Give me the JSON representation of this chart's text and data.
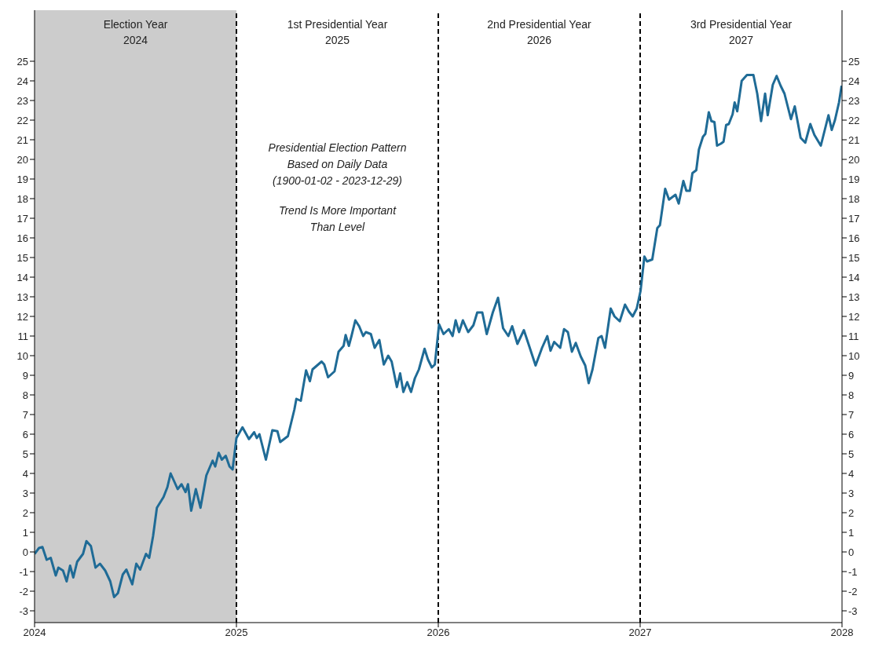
{
  "chart_data": {
    "type": "line",
    "x": [
      2024,
      2024.022,
      2024.039,
      2024.06,
      2024.08,
      2024.105,
      2024.118,
      2024.141,
      2024.159,
      2024.176,
      2024.192,
      2024.211,
      2024.24,
      2024.257,
      2024.279,
      2024.302,
      2024.324,
      2024.35,
      2024.375,
      2024.394,
      2024.413,
      2024.437,
      2024.455,
      2024.484,
      2024.504,
      2024.523,
      2024.552,
      2024.568,
      2024.587,
      2024.606,
      2024.639,
      2024.658,
      2024.674,
      2024.709,
      2024.728,
      2024.748,
      2024.76,
      2024.776,
      2024.799,
      2024.822,
      2024.851,
      2024.882,
      2024.895,
      2024.912,
      2024.928,
      2024.947,
      2024.966,
      2024.981,
      2025,
      2025.03,
      2025.062,
      2025.088,
      2025.101,
      2025.114,
      2025.146,
      2025.178,
      2025.203,
      2025.217,
      2025.255,
      2025.287,
      2025.297,
      2025.319,
      2025.345,
      2025.364,
      2025.377,
      2025.422,
      2025.435,
      2025.454,
      2025.486,
      2025.506,
      2025.531,
      2025.541,
      2025.557,
      2025.57,
      2025.589,
      2025.608,
      2025.628,
      2025.641,
      2025.666,
      2025.685,
      2025.708,
      2025.73,
      2025.752,
      2025.769,
      2025.795,
      2025.811,
      2025.827,
      2025.846,
      2025.865,
      2025.884,
      2025.904,
      2025.932,
      2025.949,
      2025.968,
      2025.983,
      2026.004,
      2026.026,
      2026.052,
      2026.071,
      2026.086,
      2026.103,
      2026.122,
      2026.148,
      2026.174,
      2026.193,
      2026.218,
      2026.24,
      2026.27,
      2026.296,
      2026.321,
      2026.347,
      2026.366,
      2026.392,
      2026.424,
      2026.45,
      2026.482,
      2026.514,
      2026.54,
      2026.556,
      2026.574,
      2026.604,
      2026.623,
      2026.642,
      2026.662,
      2026.681,
      2026.706,
      2026.728,
      2026.745,
      2026.764,
      2026.793,
      2026.809,
      2026.826,
      2026.854,
      2026.873,
      2026.899,
      2026.925,
      2026.944,
      2026.963,
      2026.983,
      2027.002,
      2027.021,
      2027.034,
      2027.06,
      2027.085,
      2027.098,
      2027.124,
      2027.143,
      2027.175,
      2027.191,
      2027.214,
      2027.229,
      2027.246,
      2027.259,
      2027.278,
      2027.291,
      2027.311,
      2027.323,
      2027.34,
      2027.353,
      2027.368,
      2027.381,
      2027.4,
      2027.413,
      2027.426,
      2027.439,
      2027.458,
      2027.468,
      2027.481,
      2027.503,
      2027.529,
      2027.561,
      2027.58,
      2027.599,
      2027.619,
      2027.632,
      2027.657,
      2027.676,
      2027.696,
      2027.715,
      2027.747,
      2027.766,
      2027.795,
      2027.818,
      2027.843,
      2027.863,
      2027.895,
      2027.933,
      2027.949,
      2027.965,
      2027.985,
      2027.998
    ],
    "series": [
      {
        "color": "#1f6b96",
        "values": [
          -0.1,
          0.2,
          0.25,
          -0.4,
          -0.3,
          -1.2,
          -0.8,
          -0.95,
          -1.5,
          -0.7,
          -1.3,
          -0.5,
          -0.1,
          0.55,
          0.3,
          -0.8,
          -0.6,
          -0.95,
          -1.5,
          -2.3,
          -2.1,
          -1.15,
          -0.9,
          -1.65,
          -0.6,
          -0.9,
          -0.1,
          -0.3,
          0.8,
          2.25,
          2.8,
          3.3,
          4.0,
          3.2,
          3.45,
          3.05,
          3.45,
          2.1,
          3.2,
          2.25,
          3.9,
          4.65,
          4.35,
          5.05,
          4.7,
          4.9,
          4.35,
          4.2,
          5.8,
          6.35,
          5.75,
          6.1,
          5.8,
          6.0,
          4.7,
          6.2,
          6.15,
          5.6,
          5.9,
          7.25,
          7.8,
          7.7,
          9.25,
          8.7,
          9.3,
          9.7,
          9.55,
          8.9,
          9.2,
          10.2,
          10.5,
          11.05,
          10.5,
          11.0,
          11.8,
          11.5,
          11.0,
          11.2,
          11.1,
          10.4,
          10.8,
          9.55,
          10.0,
          9.7,
          8.4,
          9.1,
          8.15,
          8.65,
          8.15,
          8.85,
          9.3,
          10.35,
          9.8,
          9.4,
          9.55,
          11.6,
          11.1,
          11.35,
          11.0,
          11.8,
          11.2,
          11.8,
          11.2,
          11.55,
          12.2,
          12.2,
          11.1,
          12.2,
          12.95,
          11.4,
          11.0,
          11.5,
          10.6,
          11.3,
          10.5,
          9.5,
          10.4,
          11.0,
          10.25,
          10.7,
          10.4,
          11.35,
          11.2,
          10.2,
          10.65,
          9.95,
          9.5,
          8.6,
          9.3,
          10.9,
          11.0,
          10.4,
          12.4,
          12.0,
          11.75,
          12.6,
          12.25,
          12.0,
          12.4,
          13.3,
          15.05,
          14.8,
          14.9,
          16.5,
          16.65,
          18.5,
          17.95,
          18.2,
          17.75,
          18.9,
          18.4,
          18.4,
          19.3,
          19.45,
          20.5,
          21.15,
          21.3,
          22.4,
          21.95,
          21.9,
          20.7,
          20.8,
          20.9,
          21.75,
          21.8,
          22.3,
          22.9,
          22.45,
          24.0,
          24.3,
          24.3,
          23.35,
          21.95,
          23.35,
          22.25,
          23.8,
          24.25,
          23.75,
          23.35,
          22.05,
          22.7,
          21.1,
          20.85,
          21.8,
          21.25,
          20.7,
          22.25,
          21.5,
          22.0,
          22.9,
          23.75
        ]
      }
    ],
    "xlim": [
      2024,
      2028
    ],
    "xticks": [
      2024,
      2025,
      2026,
      2027,
      2028
    ],
    "ylim": [
      -3.6,
      27.6
    ],
    "yticks": [
      -3,
      -2,
      -1,
      0,
      1,
      2,
      3,
      4,
      5,
      6,
      7,
      8,
      9,
      10,
      11,
      12,
      13,
      14,
      15,
      16,
      17,
      18,
      19,
      20,
      21,
      22,
      23,
      24,
      25
    ],
    "y2lim": [
      -3.6,
      27.6
    ],
    "y2ticks": [
      -3,
      -2,
      -1,
      0,
      1,
      2,
      3,
      4,
      5,
      6,
      7,
      8,
      9,
      10,
      11,
      12,
      13,
      14,
      15,
      16,
      17,
      18,
      19,
      20,
      21,
      22,
      23,
      24,
      25
    ],
    "bands": [
      {
        "axis": "x",
        "from": 2024,
        "to": 2025,
        "color": "#cccccc"
      }
    ],
    "ref_lines": [
      {
        "axis": "x",
        "value": 2025,
        "line_style": "dashed",
        "color": "#000000"
      },
      {
        "axis": "x",
        "value": 2026,
        "line_style": "dashed",
        "color": "#000000"
      },
      {
        "axis": "x",
        "value": 2027,
        "line_style": "dashed",
        "color": "#000000"
      }
    ],
    "annotations": [
      "Election Year\n2024",
      "1st Presidential Year\n2025",
      "2nd Presidential Year\n2026",
      "3rd Presidential Year\n2027",
      "Presidential Election Pattern\nBased on Daily Data\n(1900-01-02 - 2023-12-29)\n\nTrend Is More Important\nThan Level"
    ],
    "grid": false,
    "legend": false,
    "marker": "none",
    "line_style": "solid"
  }
}
